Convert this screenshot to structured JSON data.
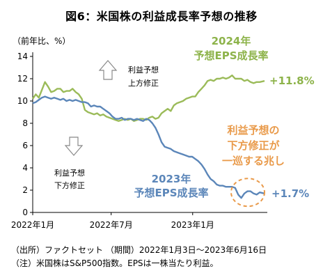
{
  "chart_data": {
    "type": "line",
    "title": "図6：米国株の利益成長率予想の推移",
    "ylabel": "（前年比、%）",
    "ylim": [
      0,
      14
    ],
    "yticks": [
      "0",
      "2",
      "4",
      "6",
      "8",
      "10",
      "12",
      "14"
    ],
    "xlim": [
      "2022-01-03",
      "2023-06-16"
    ],
    "xticks": [
      {
        "date": "2022-01-03",
        "label": "2022年1月"
      },
      {
        "date": "2022-07-01",
        "label": "2022年7月"
      },
      {
        "date": "2023-01-03",
        "label": "2023年1月"
      }
    ],
    "grid": false,
    "series": [
      {
        "name": "2024年 予想EPS成長率",
        "color": "#9bbb59",
        "points": [
          [
            "2022-01-03",
            10.2
          ],
          [
            "2022-01-10",
            10.6
          ],
          [
            "2022-01-17",
            10.3
          ],
          [
            "2022-01-24",
            11.0
          ],
          [
            "2022-01-31",
            11.7
          ],
          [
            "2022-02-07",
            11.3
          ],
          [
            "2022-02-14",
            10.8
          ],
          [
            "2022-02-21",
            10.9
          ],
          [
            "2022-02-28",
            11.1
          ],
          [
            "2022-03-07",
            11.1
          ],
          [
            "2022-03-14",
            10.8
          ],
          [
            "2022-03-21",
            10.9
          ],
          [
            "2022-03-28",
            10.9
          ],
          [
            "2022-04-04",
            11.1
          ],
          [
            "2022-04-11",
            10.8
          ],
          [
            "2022-04-18",
            10.6
          ],
          [
            "2022-04-25",
            10.2
          ],
          [
            "2022-05-02",
            9.2
          ],
          [
            "2022-05-09",
            9.0
          ],
          [
            "2022-05-16",
            8.9
          ],
          [
            "2022-05-23",
            8.8
          ],
          [
            "2022-05-30",
            8.9
          ],
          [
            "2022-06-06",
            8.7
          ],
          [
            "2022-06-13",
            8.8
          ],
          [
            "2022-06-20",
            8.6
          ],
          [
            "2022-06-27",
            8.5
          ],
          [
            "2022-07-04",
            8.4
          ],
          [
            "2022-07-11",
            8.3
          ],
          [
            "2022-07-18",
            8.2
          ],
          [
            "2022-07-25",
            8.3
          ],
          [
            "2022-08-01",
            8.4
          ],
          [
            "2022-08-08",
            8.3
          ],
          [
            "2022-08-15",
            8.4
          ],
          [
            "2022-08-22",
            8.2
          ],
          [
            "2022-08-29",
            8.3
          ],
          [
            "2022-09-05",
            8.4
          ],
          [
            "2022-09-12",
            8.4
          ],
          [
            "2022-09-19",
            8.3
          ],
          [
            "2022-09-26",
            8.5
          ],
          [
            "2022-10-03",
            8.6
          ],
          [
            "2022-10-10",
            8.4
          ],
          [
            "2022-10-17",
            8.5
          ],
          [
            "2022-10-24",
            8.9
          ],
          [
            "2022-10-31",
            9.1
          ],
          [
            "2022-11-07",
            9.3
          ],
          [
            "2022-11-14",
            9.1
          ],
          [
            "2022-11-21",
            9.6
          ],
          [
            "2022-11-28",
            9.8
          ],
          [
            "2022-12-05",
            9.9
          ],
          [
            "2022-12-12",
            10.0
          ],
          [
            "2022-12-19",
            10.2
          ],
          [
            "2022-12-26",
            10.3
          ],
          [
            "2023-01-02",
            10.4
          ],
          [
            "2023-01-09",
            10.4
          ],
          [
            "2023-01-16",
            10.8
          ],
          [
            "2023-01-23",
            11.1
          ],
          [
            "2023-01-30",
            11.4
          ],
          [
            "2023-02-06",
            11.8
          ],
          [
            "2023-02-13",
            11.9
          ],
          [
            "2023-02-20",
            11.8
          ],
          [
            "2023-02-27",
            12.0
          ],
          [
            "2023-03-06",
            12.0
          ],
          [
            "2023-03-13",
            12.1
          ],
          [
            "2023-03-20",
            12.0
          ],
          [
            "2023-03-27",
            12.1
          ],
          [
            "2023-04-03",
            12.3
          ],
          [
            "2023-04-10",
            12.0
          ],
          [
            "2023-04-17",
            12.0
          ],
          [
            "2023-04-24",
            12.0
          ],
          [
            "2023-05-01",
            11.8
          ],
          [
            "2023-05-08",
            11.9
          ],
          [
            "2023-05-15",
            11.7
          ],
          [
            "2023-05-22",
            11.6
          ],
          [
            "2023-05-29",
            11.7
          ],
          [
            "2023-06-05",
            11.7
          ],
          [
            "2023-06-16",
            11.8
          ]
        ]
      },
      {
        "name": "2023年 予想EPS成長率",
        "color": "#5b86b9",
        "points": [
          [
            "2022-01-03",
            9.8
          ],
          [
            "2022-01-10",
            9.9
          ],
          [
            "2022-01-17",
            10.1
          ],
          [
            "2022-01-24",
            10.3
          ],
          [
            "2022-01-31",
            10.4
          ],
          [
            "2022-02-07",
            10.3
          ],
          [
            "2022-02-14",
            10.2
          ],
          [
            "2022-02-21",
            10.3
          ],
          [
            "2022-02-28",
            10.2
          ],
          [
            "2022-03-07",
            10.1
          ],
          [
            "2022-03-14",
            10.2
          ],
          [
            "2022-03-21",
            10.0
          ],
          [
            "2022-03-28",
            10.1
          ],
          [
            "2022-04-04",
            10.0
          ],
          [
            "2022-04-11",
            10.1
          ],
          [
            "2022-04-18",
            10.0
          ],
          [
            "2022-04-25",
            9.9
          ],
          [
            "2022-05-02",
            9.9
          ],
          [
            "2022-05-09",
            9.8
          ],
          [
            "2022-05-16",
            9.5
          ],
          [
            "2022-05-23",
            9.6
          ],
          [
            "2022-05-30",
            9.5
          ],
          [
            "2022-06-06",
            9.5
          ],
          [
            "2022-06-13",
            9.3
          ],
          [
            "2022-06-20",
            9.1
          ],
          [
            "2022-06-27",
            8.9
          ],
          [
            "2022-07-04",
            8.6
          ],
          [
            "2022-07-11",
            8.4
          ],
          [
            "2022-07-18",
            8.4
          ],
          [
            "2022-07-25",
            8.5
          ],
          [
            "2022-08-01",
            8.3
          ],
          [
            "2022-08-08",
            8.4
          ],
          [
            "2022-08-15",
            8.4
          ],
          [
            "2022-08-22",
            8.3
          ],
          [
            "2022-08-29",
            8.4
          ],
          [
            "2022-09-05",
            8.3
          ],
          [
            "2022-09-12",
            8.2
          ],
          [
            "2022-09-19",
            8.4
          ],
          [
            "2022-09-26",
            8.3
          ],
          [
            "2022-10-03",
            8.0
          ],
          [
            "2022-10-10",
            7.6
          ],
          [
            "2022-10-17",
            7.0
          ],
          [
            "2022-10-24",
            6.3
          ],
          [
            "2022-10-31",
            5.9
          ],
          [
            "2022-11-07",
            5.8
          ],
          [
            "2022-11-14",
            5.7
          ],
          [
            "2022-11-21",
            5.5
          ],
          [
            "2022-11-28",
            5.4
          ],
          [
            "2022-12-05",
            5.3
          ],
          [
            "2022-12-12",
            5.2
          ],
          [
            "2022-12-19",
            5.1
          ],
          [
            "2022-12-26",
            5.0
          ],
          [
            "2023-01-02",
            5.0
          ],
          [
            "2023-01-09",
            4.8
          ],
          [
            "2023-01-16",
            4.6
          ],
          [
            "2023-01-23",
            4.3
          ],
          [
            "2023-01-30",
            3.9
          ],
          [
            "2023-02-06",
            3.4
          ],
          [
            "2023-02-13",
            3.0
          ],
          [
            "2023-02-20",
            2.8
          ],
          [
            "2023-02-27",
            2.5
          ],
          [
            "2023-03-06",
            2.4
          ],
          [
            "2023-03-13",
            2.4
          ],
          [
            "2023-03-20",
            2.3
          ],
          [
            "2023-03-27",
            2.3
          ],
          [
            "2023-04-03",
            2.3
          ],
          [
            "2023-04-10",
            2.2
          ],
          [
            "2023-04-17",
            1.6
          ],
          [
            "2023-04-24",
            1.3
          ],
          [
            "2023-05-01",
            1.7
          ],
          [
            "2023-05-08",
            1.9
          ],
          [
            "2023-05-15",
            1.9
          ],
          [
            "2023-05-22",
            1.7
          ],
          [
            "2023-05-29",
            1.6
          ],
          [
            "2023-06-05",
            1.8
          ],
          [
            "2023-06-16",
            1.7
          ]
        ]
      }
    ],
    "annotations": {
      "green_label": [
        "2024年",
        "予想EPS成長率"
      ],
      "green_value": "+11.8%",
      "blue_label": [
        "2023年",
        "予想EPS成長率"
      ],
      "blue_value": "+1.7%",
      "up_text": [
        "利益予想",
        "上方修正"
      ],
      "down_text": [
        "利益予想",
        "下方修正"
      ],
      "orange_text": [
        "利益予想の",
        "下方修正が",
        "一巡する兆し"
      ]
    },
    "colors": {
      "green": "#9bbb59",
      "blue": "#5b86b9",
      "orange": "#e99a4a"
    }
  },
  "notes": [
    "（出所）ファクトセット （期間）2022年1月3日～2023年6月16日",
    "（注）米国株はS&P500指数。EPSは一株当たり利益。"
  ]
}
